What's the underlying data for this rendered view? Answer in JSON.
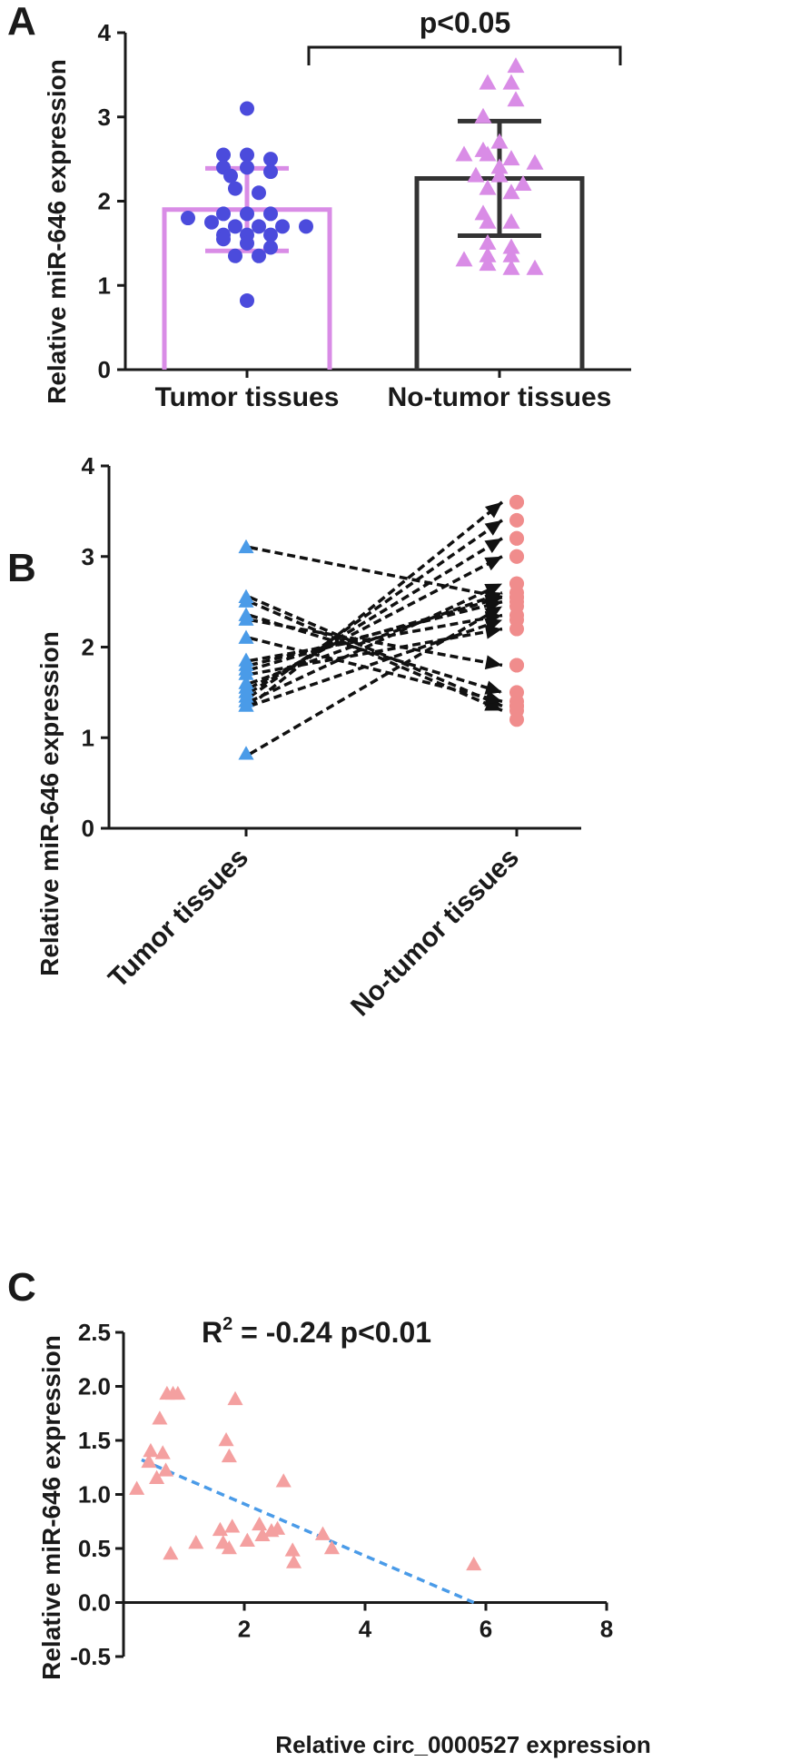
{
  "panels": {
    "a": {
      "letter": "A"
    },
    "b": {
      "letter": "B"
    },
    "c": {
      "letter": "C"
    }
  },
  "chart_data": [
    {
      "panel": "A",
      "type": "bar",
      "ylabel": "Relative miR-646 expression",
      "ylim": [
        0,
        4
      ],
      "yticks": [
        0,
        1,
        2,
        3,
        4
      ],
      "categories": [
        "Tumor tissues",
        "No-tumor tissues"
      ],
      "bars": [
        {
          "category": "Tumor tissues",
          "mean": 1.9,
          "sd": 0.49,
          "color": "#d98ce6",
          "point_color": "#4b4bdc",
          "marker": "circle"
        },
        {
          "category": "No-tumor tissues",
          "mean": 2.27,
          "sd": 0.68,
          "color": "#333333",
          "point_color": "#d98ce6",
          "marker": "triangle"
        }
      ],
      "points": {
        "Tumor tissues": [
          3.1,
          2.55,
          2.55,
          2.5,
          2.4,
          2.4,
          2.35,
          2.3,
          2.15,
          2.1,
          1.85,
          1.85,
          1.85,
          1.8,
          1.75,
          1.7,
          1.7,
          1.7,
          1.7,
          1.6,
          1.6,
          1.6,
          1.55,
          1.5,
          1.45,
          1.35,
          1.35,
          0.82
        ],
        "No-tumor tissues": [
          3.6,
          3.4,
          3.4,
          3.2,
          3.0,
          2.7,
          2.6,
          2.55,
          2.55,
          2.5,
          2.45,
          2.4,
          2.3,
          2.3,
          2.2,
          2.15,
          2.1,
          1.85,
          1.75,
          1.75,
          1.5,
          1.45,
          1.35,
          1.35,
          1.3,
          1.25,
          1.2,
          1.2
        ]
      },
      "significance": {
        "label": "p<0.05"
      }
    },
    {
      "panel": "B",
      "type": "line",
      "ylabel": "Relative miR-646 expression",
      "ylim": [
        0,
        4
      ],
      "yticks": [
        0,
        1,
        2,
        3,
        4
      ],
      "categories": [
        "Tumor tissues",
        "No-tumor tissues"
      ],
      "colors": {
        "tumor": "#4a9be8",
        "no_tumor": "#f08c8c",
        "line": "#111111"
      },
      "pairs": [
        [
          3.1,
          2.55
        ],
        [
          2.55,
          1.35
        ],
        [
          2.5,
          1.3
        ],
        [
          2.35,
          1.5
        ],
        [
          2.3,
          1.8
        ],
        [
          2.1,
          1.4
        ],
        [
          1.85,
          2.35
        ],
        [
          1.8,
          2.5
        ],
        [
          1.75,
          2.55
        ],
        [
          1.7,
          2.2
        ],
        [
          1.6,
          2.6
        ],
        [
          1.55,
          3.0
        ],
        [
          1.5,
          3.2
        ],
        [
          1.45,
          3.4
        ],
        [
          1.4,
          2.7
        ],
        [
          1.35,
          3.6
        ],
        [
          1.35,
          2.3
        ],
        [
          0.82,
          2.45
        ]
      ]
    },
    {
      "panel": "C",
      "type": "scatter",
      "xlabel": "Relative circ_0000527 expression",
      "ylabel": "Relative miR-646 expression",
      "xlim": [
        0,
        8
      ],
      "ylim": [
        -0.5,
        2.5
      ],
      "xticks": [
        2,
        4,
        6,
        8
      ],
      "yticks": [
        -0.5,
        0.0,
        0.5,
        1.0,
        1.5,
        2.0,
        2.5
      ],
      "ytick_labels": [
        "-0.5",
        "0.0",
        "0.5",
        "1.0",
        "1.5",
        "2.0",
        "2.5"
      ],
      "annotation": {
        "prefix": "R",
        "sup": "2",
        "text": " = -0.24 p<0.01"
      },
      "marker_color": "#f4a0a0",
      "fit_color": "#4a9be8",
      "fit_line": {
        "x": [
          0.3,
          5.8
        ],
        "y": [
          1.32,
          0.0
        ]
      },
      "points": [
        [
          0.22,
          1.05
        ],
        [
          0.42,
          1.3
        ],
        [
          0.45,
          1.4
        ],
        [
          0.55,
          1.15
        ],
        [
          0.6,
          1.7
        ],
        [
          0.65,
          1.38
        ],
        [
          0.7,
          1.22
        ],
        [
          0.72,
          1.93
        ],
        [
          0.78,
          0.45
        ],
        [
          0.82,
          1.93
        ],
        [
          0.9,
          1.93
        ],
        [
          1.2,
          0.55
        ],
        [
          1.6,
          0.67
        ],
        [
          1.65,
          0.55
        ],
        [
          1.7,
          1.5
        ],
        [
          1.75,
          1.35
        ],
        [
          1.75,
          0.5
        ],
        [
          1.8,
          0.7
        ],
        [
          1.85,
          1.88
        ],
        [
          2.05,
          0.57
        ],
        [
          2.25,
          0.72
        ],
        [
          2.3,
          0.62
        ],
        [
          2.45,
          0.66
        ],
        [
          2.55,
          0.68
        ],
        [
          2.65,
          1.12
        ],
        [
          2.8,
          0.48
        ],
        [
          2.82,
          0.37
        ],
        [
          3.3,
          0.63
        ],
        [
          3.45,
          0.5
        ],
        [
          5.8,
          0.35
        ]
      ]
    }
  ]
}
